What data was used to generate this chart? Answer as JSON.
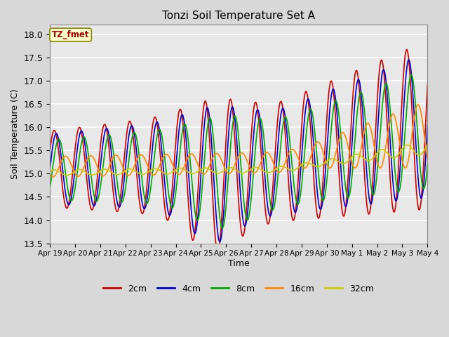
{
  "title": "Tonzi Soil Temperature Set A",
  "xlabel": "Time",
  "ylabel": "Soil Temperature (C)",
  "annotation": "TZ_fmet",
  "ylim": [
    13.5,
    18.2
  ],
  "series": {
    "2cm": {
      "color": "#cc0000",
      "lw": 1.2
    },
    "4cm": {
      "color": "#0000cc",
      "lw": 1.2
    },
    "8cm": {
      "color": "#00aa00",
      "lw": 1.2
    },
    "16cm": {
      "color": "#ff8800",
      "lw": 1.2
    },
    "32cm": {
      "color": "#cccc00",
      "lw": 1.2
    }
  },
  "legend_labels": [
    "2cm",
    "4cm",
    "8cm",
    "16cm",
    "32cm"
  ],
  "legend_colors": [
    "#cc0000",
    "#0000cc",
    "#00aa00",
    "#ff8800",
    "#cccc00"
  ],
  "xtick_labels": [
    "Apr 19",
    "Apr 20",
    "Apr 21",
    "Apr 22",
    "Apr 23",
    "Apr 24",
    "Apr 25",
    "Apr 26",
    "Apr 27",
    "Apr 28",
    "Apr 29",
    "Apr 30",
    "May 1",
    "May 2",
    "May 3",
    "May 4"
  ],
  "bg_color": "#d8d8d8",
  "plot_bg": "#e8e8e8",
  "annotation_bg": "#ffffcc",
  "annotation_border": "#888800",
  "annotation_text_color": "#aa0000",
  "figsize": [
    6.4,
    4.8
  ],
  "dpi": 100
}
